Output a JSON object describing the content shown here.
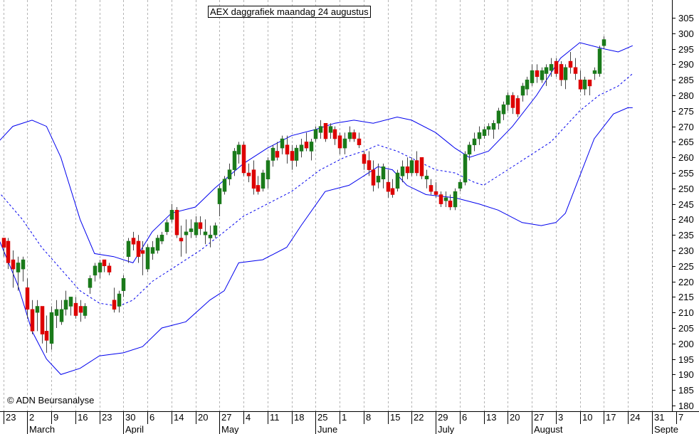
{
  "chart_data": {
    "type": "candlestick",
    "title": "AEX daggrafiek maandag 24 augustus",
    "copyright": "© ADN Beursanalyse",
    "ylim": [
      178,
      309
    ],
    "y_ticks": [
      305,
      300,
      295,
      290,
      285,
      280,
      275,
      270,
      265,
      260,
      255,
      250,
      245,
      240,
      235,
      230,
      225,
      220,
      215,
      210,
      205,
      200,
      195,
      190,
      185,
      180
    ],
    "x_day_labels": [
      "23",
      "2",
      "9",
      "16",
      "23",
      "30",
      "6",
      "14",
      "20",
      "27",
      "4",
      "11",
      "18",
      "25",
      "1",
      "8",
      "15",
      "22",
      "29",
      "6",
      "13",
      "20",
      "27",
      "3",
      "10",
      "17",
      "24",
      "31",
      "7"
    ],
    "x_day_label_index": [
      0,
      5,
      10,
      15,
      20,
      25,
      30,
      35,
      40,
      45,
      50,
      55,
      60,
      65,
      70,
      75,
      80,
      85,
      90,
      95,
      100,
      105,
      110,
      115,
      120,
      125,
      130,
      135,
      140
    ],
    "month_labels": [
      "March",
      "April",
      "May",
      "June",
      "July",
      "August",
      "Septe"
    ],
    "month_label_index": [
      5,
      25,
      45,
      65,
      90,
      110,
      135
    ],
    "colors": {
      "up_candle": "#1a7a1a",
      "down_candle": "#dd0000",
      "band": "#0000ee",
      "grid": "#b4b4b4",
      "text": "#000000"
    },
    "upper_band_points": [
      [
        -1,
        265
      ],
      [
        2,
        270
      ],
      [
        6,
        272
      ],
      [
        9,
        270
      ],
      [
        12,
        260
      ],
      [
        16,
        240
      ],
      [
        19,
        229
      ],
      [
        23,
        228
      ],
      [
        27,
        226
      ],
      [
        31,
        236
      ],
      [
        35,
        242
      ],
      [
        40,
        244
      ],
      [
        44,
        250
      ],
      [
        50,
        258
      ],
      [
        55,
        263
      ],
      [
        60,
        267
      ],
      [
        65,
        269
      ],
      [
        69,
        271
      ],
      [
        73,
        272
      ],
      [
        77,
        271
      ],
      [
        82,
        273
      ],
      [
        85,
        272
      ],
      [
        90,
        268
      ],
      [
        94,
        263
      ],
      [
        97,
        260
      ],
      [
        101,
        262
      ],
      [
        106,
        270
      ],
      [
        111,
        280
      ],
      [
        116,
        292
      ],
      [
        120,
        297
      ],
      [
        125,
        295
      ],
      [
        128,
        294
      ],
      [
        131,
        296
      ]
    ],
    "middle_band_points": [
      [
        -1,
        249
      ],
      [
        4,
        240
      ],
      [
        8,
        231
      ],
      [
        12,
        224
      ],
      [
        16,
        217
      ],
      [
        20,
        213
      ],
      [
        24,
        212
      ],
      [
        27,
        214
      ],
      [
        31,
        220
      ],
      [
        36,
        225
      ],
      [
        41,
        230
      ],
      [
        46,
        236
      ],
      [
        50,
        241
      ],
      [
        55,
        245
      ],
      [
        60,
        249
      ],
      [
        66,
        256
      ],
      [
        71,
        260
      ],
      [
        75,
        262
      ],
      [
        78,
        264
      ],
      [
        82,
        262
      ],
      [
        86,
        259
      ],
      [
        90,
        256
      ],
      [
        94,
        255
      ],
      [
        98,
        252
      ],
      [
        100,
        251
      ],
      [
        104,
        255
      ],
      [
        109,
        260
      ],
      [
        114,
        265
      ],
      [
        120,
        275
      ],
      [
        124,
        280
      ],
      [
        128,
        283
      ],
      [
        131,
        287
      ]
    ],
    "lower_band_points": [
      [
        -1,
        234
      ],
      [
        3,
        219
      ],
      [
        6,
        204
      ],
      [
        9,
        195
      ],
      [
        12,
        190
      ],
      [
        16,
        192
      ],
      [
        20,
        196
      ],
      [
        25,
        197
      ],
      [
        29,
        199
      ],
      [
        33,
        205
      ],
      [
        38,
        207
      ],
      [
        43,
        214
      ],
      [
        46,
        217
      ],
      [
        49,
        226
      ],
      [
        54,
        227
      ],
      [
        59,
        231
      ],
      [
        62,
        238
      ],
      [
        67,
        249
      ],
      [
        72,
        251
      ],
      [
        75,
        254
      ],
      [
        78,
        257
      ],
      [
        81,
        256
      ],
      [
        84,
        251
      ],
      [
        88,
        248
      ],
      [
        94,
        247
      ],
      [
        99,
        245
      ],
      [
        103,
        243
      ],
      [
        108,
        239
      ],
      [
        112,
        238
      ],
      [
        115,
        239
      ],
      [
        117,
        242
      ],
      [
        120,
        254
      ],
      [
        123,
        266
      ],
      [
        127,
        274
      ],
      [
        130,
        276
      ],
      [
        131,
        276
      ]
    ],
    "candles": [
      {
        "x": 0,
        "o": 234,
        "h": 234,
        "l": 228,
        "c": 231
      },
      {
        "x": 1,
        "o": 233,
        "h": 234,
        "l": 224,
        "c": 226
      },
      {
        "x": 2,
        "o": 227,
        "h": 230,
        "l": 218,
        "c": 224
      },
      {
        "x": 3,
        "o": 223,
        "h": 228,
        "l": 217,
        "c": 226
      },
      {
        "x": 4,
        "o": 224,
        "h": 228,
        "l": 220,
        "c": 227
      },
      {
        "x": 5,
        "o": 218,
        "h": 221,
        "l": 208,
        "c": 211
      },
      {
        "x": 6,
        "o": 211,
        "h": 214,
        "l": 203,
        "c": 204
      },
      {
        "x": 7,
        "o": 210,
        "h": 214,
        "l": 204,
        "c": 212
      },
      {
        "x": 8,
        "o": 212,
        "h": 212,
        "l": 200,
        "c": 203
      },
      {
        "x": 9,
        "o": 204,
        "h": 209,
        "l": 197,
        "c": 201
      },
      {
        "x": 10,
        "o": 200,
        "h": 212,
        "l": 198,
        "c": 210
      },
      {
        "x": 11,
        "o": 209,
        "h": 214,
        "l": 205,
        "c": 211
      },
      {
        "x": 12,
        "o": 207,
        "h": 214,
        "l": 206,
        "c": 211
      },
      {
        "x": 13,
        "o": 211,
        "h": 217,
        "l": 209,
        "c": 214
      },
      {
        "x": 14,
        "o": 212,
        "h": 215,
        "l": 209,
        "c": 215
      },
      {
        "x": 15,
        "o": 213,
        "h": 215,
        "l": 208,
        "c": 209
      },
      {
        "x": 16,
        "o": 212,
        "h": 214,
        "l": 207,
        "c": 210
      },
      {
        "x": 17,
        "o": 209,
        "h": 213,
        "l": 208,
        "c": 212
      },
      {
        "x": 18,
        "o": 218,
        "h": 222,
        "l": 216,
        "c": 221
      },
      {
        "x": 19,
        "o": 222,
        "h": 226,
        "l": 220,
        "c": 225
      },
      {
        "x": 20,
        "o": 223,
        "h": 227,
        "l": 221,
        "c": 226
      },
      {
        "x": 21,
        "o": 227,
        "h": 227,
        "l": 223,
        "c": 225
      },
      {
        "x": 22,
        "o": 225,
        "h": 226,
        "l": 222,
        "c": 223
      },
      {
        "x": 23,
        "o": 214,
        "h": 218,
        "l": 210,
        "c": 211
      },
      {
        "x": 24,
        "o": 212,
        "h": 217,
        "l": 210,
        "c": 216
      },
      {
        "x": 25,
        "o": 217,
        "h": 222,
        "l": 215,
        "c": 221
      },
      {
        "x": 26,
        "o": 228,
        "h": 234,
        "l": 226,
        "c": 233
      },
      {
        "x": 27,
        "o": 234,
        "h": 236,
        "l": 230,
        "c": 232
      },
      {
        "x": 28,
        "o": 233,
        "h": 235,
        "l": 226,
        "c": 228
      },
      {
        "x": 29,
        "o": 230,
        "h": 233,
        "l": 222,
        "c": 229
      },
      {
        "x": 30,
        "o": 224,
        "h": 232,
        "l": 223,
        "c": 231
      },
      {
        "x": 31,
        "o": 229,
        "h": 233,
        "l": 227,
        "c": 231
      },
      {
        "x": 32,
        "o": 230,
        "h": 235,
        "l": 229,
        "c": 234
      },
      {
        "x": 33,
        "o": 233,
        "h": 236,
        "l": 232,
        "c": 235
      },
      {
        "x": 34,
        "o": 236,
        "h": 240,
        "l": 235,
        "c": 239
      },
      {
        "x": 35,
        "o": 240,
        "h": 245,
        "l": 239,
        "c": 243
      },
      {
        "x": 36,
        "o": 243,
        "h": 244,
        "l": 234,
        "c": 235
      },
      {
        "x": 37,
        "o": 234,
        "h": 238,
        "l": 228,
        "c": 233
      },
      {
        "x": 38,
        "o": 235,
        "h": 240,
        "l": 229,
        "c": 236
      },
      {
        "x": 39,
        "o": 236,
        "h": 240,
        "l": 234,
        "c": 237
      },
      {
        "x": 40,
        "o": 235,
        "h": 241,
        "l": 234,
        "c": 239
      },
      {
        "x": 41,
        "o": 239,
        "h": 241,
        "l": 235,
        "c": 237
      },
      {
        "x": 42,
        "o": 235,
        "h": 240,
        "l": 232,
        "c": 236
      },
      {
        "x": 43,
        "o": 234,
        "h": 238,
        "l": 231,
        "c": 235
      },
      {
        "x": 44,
        "o": 235,
        "h": 239,
        "l": 234,
        "c": 238
      },
      {
        "x": 45,
        "o": 245,
        "h": 251,
        "l": 241,
        "c": 250
      },
      {
        "x": 46,
        "o": 249,
        "h": 254,
        "l": 248,
        "c": 253
      },
      {
        "x": 47,
        "o": 253,
        "h": 258,
        "l": 251,
        "c": 256
      },
      {
        "x": 48,
        "o": 256,
        "h": 263,
        "l": 254,
        "c": 262
      },
      {
        "x": 49,
        "o": 261,
        "h": 265,
        "l": 258,
        "c": 264
      },
      {
        "x": 50,
        "o": 264,
        "h": 265,
        "l": 254,
        "c": 255
      },
      {
        "x": 51,
        "o": 255,
        "h": 258,
        "l": 252,
        "c": 254
      },
      {
        "x": 52,
        "o": 256,
        "h": 259,
        "l": 248,
        "c": 250
      },
      {
        "x": 53,
        "o": 251,
        "h": 254,
        "l": 248,
        "c": 249
      },
      {
        "x": 54,
        "o": 250,
        "h": 256,
        "l": 249,
        "c": 255
      },
      {
        "x": 55,
        "o": 253,
        "h": 260,
        "l": 250,
        "c": 259
      },
      {
        "x": 56,
        "o": 259,
        "h": 264,
        "l": 257,
        "c": 263
      },
      {
        "x": 57,
        "o": 262,
        "h": 265,
        "l": 259,
        "c": 260
      },
      {
        "x": 58,
        "o": 263,
        "h": 267,
        "l": 261,
        "c": 266
      },
      {
        "x": 59,
        "o": 264,
        "h": 267,
        "l": 258,
        "c": 261
      },
      {
        "x": 60,
        "o": 262,
        "h": 264,
        "l": 256,
        "c": 259
      },
      {
        "x": 61,
        "o": 259,
        "h": 264,
        "l": 257,
        "c": 263
      },
      {
        "x": 62,
        "o": 262,
        "h": 266,
        "l": 260,
        "c": 264
      },
      {
        "x": 63,
        "o": 265,
        "h": 268,
        "l": 262,
        "c": 263
      },
      {
        "x": 64,
        "o": 262,
        "h": 266,
        "l": 259,
        "c": 265
      },
      {
        "x": 65,
        "o": 266,
        "h": 270,
        "l": 265,
        "c": 269
      },
      {
        "x": 66,
        "o": 268,
        "h": 272,
        "l": 266,
        "c": 270
      },
      {
        "x": 67,
        "o": 271,
        "h": 271,
        "l": 265,
        "c": 266
      },
      {
        "x": 68,
        "o": 268,
        "h": 271,
        "l": 266,
        "c": 270
      },
      {
        "x": 69,
        "o": 269,
        "h": 270,
        "l": 264,
        "c": 266
      },
      {
        "x": 70,
        "o": 267,
        "h": 268,
        "l": 261,
        "c": 263
      },
      {
        "x": 71,
        "o": 263,
        "h": 268,
        "l": 261,
        "c": 266
      },
      {
        "x": 72,
        "o": 266,
        "h": 270,
        "l": 265,
        "c": 268
      },
      {
        "x": 73,
        "o": 268,
        "h": 269,
        "l": 265,
        "c": 266
      },
      {
        "x": 74,
        "o": 266,
        "h": 268,
        "l": 263,
        "c": 264
      },
      {
        "x": 75,
        "o": 261,
        "h": 262,
        "l": 256,
        "c": 258
      },
      {
        "x": 76,
        "o": 259,
        "h": 262,
        "l": 254,
        "c": 256
      },
      {
        "x": 77,
        "o": 256,
        "h": 259,
        "l": 249,
        "c": 251
      },
      {
        "x": 78,
        "o": 252,
        "h": 258,
        "l": 250,
        "c": 254
      },
      {
        "x": 79,
        "o": 253,
        "h": 258,
        "l": 250,
        "c": 257
      },
      {
        "x": 80,
        "o": 252,
        "h": 256,
        "l": 247,
        "c": 249
      },
      {
        "x": 81,
        "o": 250,
        "h": 253,
        "l": 247,
        "c": 248
      },
      {
        "x": 82,
        "o": 250,
        "h": 256,
        "l": 249,
        "c": 255
      },
      {
        "x": 83,
        "o": 254,
        "h": 259,
        "l": 252,
        "c": 257
      },
      {
        "x": 84,
        "o": 257,
        "h": 260,
        "l": 253,
        "c": 255
      },
      {
        "x": 85,
        "o": 255,
        "h": 260,
        "l": 254,
        "c": 259
      },
      {
        "x": 86,
        "o": 259,
        "h": 262,
        "l": 254,
        "c": 255
      },
      {
        "x": 87,
        "o": 260,
        "h": 260,
        "l": 253,
        "c": 254
      },
      {
        "x": 88,
        "o": 253,
        "h": 256,
        "l": 250,
        "c": 254
      },
      {
        "x": 89,
        "o": 251,
        "h": 253,
        "l": 248,
        "c": 249
      },
      {
        "x": 90,
        "o": 249,
        "h": 252,
        "l": 247,
        "c": 248
      },
      {
        "x": 91,
        "o": 248,
        "h": 249,
        "l": 244,
        "c": 245
      },
      {
        "x": 92,
        "o": 246,
        "h": 249,
        "l": 244,
        "c": 247
      },
      {
        "x": 93,
        "o": 246,
        "h": 248,
        "l": 243,
        "c": 244
      },
      {
        "x": 94,
        "o": 244,
        "h": 250,
        "l": 243,
        "c": 249
      },
      {
        "x": 95,
        "o": 250,
        "h": 253,
        "l": 249,
        "c": 252
      },
      {
        "x": 96,
        "o": 252,
        "h": 262,
        "l": 251,
        "c": 261
      },
      {
        "x": 97,
        "o": 261,
        "h": 265,
        "l": 259,
        "c": 264
      },
      {
        "x": 98,
        "o": 264,
        "h": 268,
        "l": 262,
        "c": 266
      },
      {
        "x": 99,
        "o": 266,
        "h": 270,
        "l": 264,
        "c": 268
      },
      {
        "x": 100,
        "o": 267,
        "h": 270,
        "l": 266,
        "c": 269
      },
      {
        "x": 101,
        "o": 269,
        "h": 271,
        "l": 267,
        "c": 270
      },
      {
        "x": 102,
        "o": 269,
        "h": 272,
        "l": 266,
        "c": 271
      },
      {
        "x": 103,
        "o": 271,
        "h": 276,
        "l": 269,
        "c": 275
      },
      {
        "x": 104,
        "o": 274,
        "h": 278,
        "l": 272,
        "c": 277
      },
      {
        "x": 105,
        "o": 277,
        "h": 281,
        "l": 275,
        "c": 280
      },
      {
        "x": 106,
        "o": 280,
        "h": 281,
        "l": 274,
        "c": 276
      },
      {
        "x": 107,
        "o": 279,
        "h": 280,
        "l": 273,
        "c": 274
      },
      {
        "x": 108,
        "o": 280,
        "h": 284,
        "l": 278,
        "c": 283
      },
      {
        "x": 109,
        "o": 282,
        "h": 286,
        "l": 280,
        "c": 285
      },
      {
        "x": 110,
        "o": 284,
        "h": 290,
        "l": 283,
        "c": 288
      },
      {
        "x": 111,
        "o": 288,
        "h": 290,
        "l": 284,
        "c": 286
      },
      {
        "x": 112,
        "o": 285,
        "h": 289,
        "l": 284,
        "c": 288
      },
      {
        "x": 113,
        "o": 287,
        "h": 290,
        "l": 283,
        "c": 289
      },
      {
        "x": 114,
        "o": 288,
        "h": 292,
        "l": 286,
        "c": 290
      },
      {
        "x": 115,
        "o": 291,
        "h": 292,
        "l": 286,
        "c": 287
      },
      {
        "x": 116,
        "o": 290,
        "h": 291,
        "l": 283,
        "c": 285
      },
      {
        "x": 117,
        "o": 285,
        "h": 290,
        "l": 282,
        "c": 289
      },
      {
        "x": 118,
        "o": 291,
        "h": 294,
        "l": 287,
        "c": 289
      },
      {
        "x": 119,
        "o": 289,
        "h": 292,
        "l": 285,
        "c": 287
      },
      {
        "x": 120,
        "o": 285,
        "h": 288,
        "l": 281,
        "c": 282
      },
      {
        "x": 121,
        "o": 282,
        "h": 286,
        "l": 280,
        "c": 285
      },
      {
        "x": 122,
        "o": 285,
        "h": 285,
        "l": 280,
        "c": 283
      },
      {
        "x": 123,
        "o": 287,
        "h": 289,
        "l": 285,
        "c": 288
      },
      {
        "x": 124,
        "o": 287,
        "h": 296,
        "l": 286,
        "c": 295
      },
      {
        "x": 125,
        "o": 296,
        "h": 299,
        "l": 295,
        "c": 298
      }
    ]
  }
}
